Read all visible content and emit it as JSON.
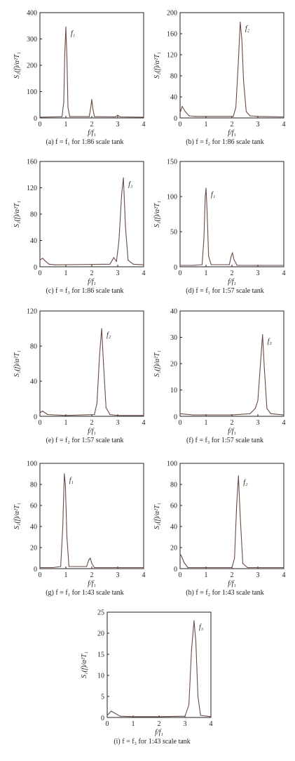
{
  "figure": {
    "xlabel": "f/f₁",
    "ylabel": "S₁(f)/α²T₁",
    "line_color": "#6b4a44",
    "axis_color": "#222222"
  },
  "chart_data": [
    {
      "type": "line",
      "caption": "(a) f = f₁ for 1:86 scale tank",
      "peak_label": "f₁",
      "xlim": [
        0,
        4
      ],
      "ylim": [
        0,
        400
      ],
      "xticks": [
        0,
        1,
        2,
        3,
        4
      ],
      "yticks": [
        100,
        200,
        300,
        400
      ],
      "x": [
        0,
        0.5,
        0.85,
        0.92,
        0.96,
        1.0,
        1.04,
        1.08,
        1.15,
        1.9,
        1.96,
        2.0,
        2.04,
        2.1,
        2.9,
        3.0,
        3.1,
        4.0
      ],
      "y": [
        3,
        4,
        5,
        60,
        250,
        345,
        230,
        40,
        5,
        5,
        40,
        70,
        35,
        5,
        4,
        10,
        4,
        3
      ]
    },
    {
      "type": "line",
      "caption": "(b) f = f₂ for 1:86 scale tank",
      "peak_label": "f₂",
      "xlim": [
        0,
        4
      ],
      "ylim": [
        0,
        200
      ],
      "xticks": [
        0,
        1,
        2,
        3,
        4
      ],
      "yticks": [
        40,
        80,
        120,
        160,
        200
      ],
      "x": [
        0,
        0.08,
        0.2,
        0.35,
        0.6,
        2.05,
        2.15,
        2.25,
        2.32,
        2.38,
        2.45,
        2.55,
        2.7,
        3.0,
        4.0
      ],
      "y": [
        10,
        22,
        12,
        4,
        3,
        3,
        20,
        110,
        182,
        150,
        70,
        12,
        4,
        3,
        2
      ]
    },
    {
      "type": "line",
      "caption": "(c) f = f₃ for 1:86 scale tank",
      "peak_label": "f₃",
      "xlim": [
        0,
        4
      ],
      "ylim": [
        0,
        160
      ],
      "xticks": [
        0,
        1,
        2,
        3,
        4
      ],
      "yticks": [
        40,
        80,
        120,
        160
      ],
      "x": [
        0,
        0.1,
        0.2,
        0.35,
        0.6,
        2.7,
        2.85,
        2.95,
        3.05,
        3.15,
        3.22,
        3.3,
        3.4,
        3.6,
        4.0
      ],
      "y": [
        10,
        13,
        9,
        4,
        3,
        4,
        14,
        8,
        40,
        110,
        135,
        60,
        10,
        4,
        3
      ]
    },
    {
      "type": "line",
      "caption": "(d) f = f₁ for 1:57 scale tank",
      "peak_label": "f₁",
      "xlim": [
        0,
        4
      ],
      "ylim": [
        0,
        150
      ],
      "xticks": [
        0,
        1,
        2,
        3,
        4
      ],
      "yticks": [
        50,
        100,
        150
      ],
      "x": [
        0,
        0.5,
        0.85,
        0.92,
        0.97,
        1.0,
        1.04,
        1.1,
        1.2,
        1.9,
        1.97,
        2.02,
        2.08,
        2.2,
        3.0,
        4.0
      ],
      "y": [
        2,
        2,
        3,
        40,
        100,
        112,
        80,
        15,
        3,
        3,
        15,
        20,
        10,
        2,
        2,
        2
      ]
    },
    {
      "type": "line",
      "caption": "(e) f = f₂ for 1:57 scale tank",
      "peak_label": "f₂",
      "xlim": [
        0,
        4
      ],
      "ylim": [
        0,
        120
      ],
      "xticks": [
        0,
        1,
        2,
        3,
        4
      ],
      "yticks": [
        40,
        80,
        120
      ],
      "x": [
        0,
        0.1,
        0.3,
        1.0,
        2.1,
        2.2,
        2.3,
        2.38,
        2.45,
        2.55,
        2.7,
        3.0,
        4.0
      ],
      "y": [
        4,
        6,
        2,
        1,
        2,
        15,
        70,
        100,
        60,
        10,
        2,
        1,
        1
      ]
    },
    {
      "type": "line",
      "caption": "(f) f = f₃ for 1:57 scale tank",
      "peak_label": "f₃",
      "xlim": [
        0,
        4
      ],
      "ylim": [
        0,
        40
      ],
      "xticks": [
        0,
        1,
        2,
        3,
        4
      ],
      "yticks": [
        10,
        20,
        30,
        40
      ],
      "x": [
        0,
        0.5,
        1.0,
        2.0,
        2.7,
        2.9,
        3.0,
        3.1,
        3.18,
        3.25,
        3.35,
        3.5,
        4.0
      ],
      "y": [
        1,
        0.5,
        0.5,
        0.5,
        1,
        3,
        6,
        20,
        31,
        18,
        3,
        1,
        0.5
      ]
    },
    {
      "type": "line",
      "caption": "(g) f = f₁ for 1:43 scale tank",
      "peak_label": "f₁",
      "xlim": [
        0,
        4
      ],
      "ylim": [
        0,
        100
      ],
      "xticks": [
        0,
        1,
        2,
        3,
        4
      ],
      "yticks": [
        20,
        40,
        60,
        80,
        100
      ],
      "x": [
        0,
        0.5,
        0.8,
        0.88,
        0.94,
        0.98,
        1.04,
        1.12,
        1.8,
        1.88,
        1.94,
        2.0,
        2.1,
        3.0,
        4.0
      ],
      "y": [
        1,
        1,
        2,
        40,
        90,
        80,
        30,
        2,
        2,
        8,
        10,
        5,
        1,
        1,
        1
      ]
    },
    {
      "type": "line",
      "caption": "(h) f = f₂ for 1:43 scale tank",
      "peak_label": "f₂",
      "xlim": [
        0,
        4
      ],
      "ylim": [
        0,
        100
      ],
      "xticks": [
        0,
        1,
        2,
        3,
        4
      ],
      "yticks": [
        20,
        40,
        60,
        80,
        100
      ],
      "x": [
        0,
        0.05,
        0.15,
        0.3,
        1.0,
        2.0,
        2.1,
        2.18,
        2.25,
        2.32,
        2.42,
        2.6,
        3.0,
        4.0
      ],
      "y": [
        14,
        12,
        6,
        1,
        1,
        1,
        10,
        60,
        88,
        50,
        5,
        1,
        1,
        1
      ]
    },
    {
      "type": "line",
      "caption": "(i) f = f₃ for 1:43 scale tank",
      "peak_label": "f₃",
      "xlim": [
        0,
        4
      ],
      "ylim": [
        0,
        25
      ],
      "xticks": [
        0,
        1,
        2,
        3,
        4
      ],
      "yticks": [
        5,
        10,
        15,
        20,
        25
      ],
      "x": [
        0,
        0.15,
        0.3,
        0.5,
        1.0,
        2.0,
        3.0,
        3.15,
        3.25,
        3.35,
        3.42,
        3.5,
        3.6,
        4.0
      ],
      "y": [
        0.5,
        1.5,
        1,
        0.3,
        0.2,
        0.2,
        0.3,
        3,
        16,
        23,
        18,
        5,
        0.5,
        0.2
      ]
    }
  ]
}
